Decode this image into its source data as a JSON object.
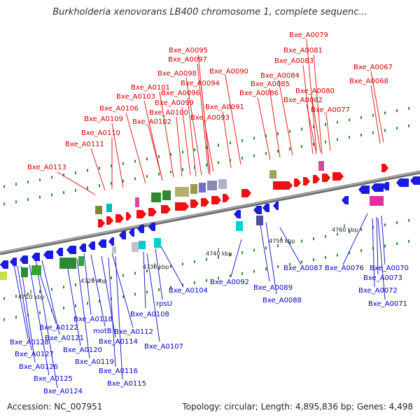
{
  "title": "Burkholderia xenovorans LB400 chromosome 1, complete sequenc...",
  "footer": {
    "accession": "Accession: NC_007951",
    "stats": "Topology: circular; Length: 4,895,836 bp; Genes: 4,498"
  },
  "colors": {
    "plus_label": "#cc0000",
    "minus_label": "#0000cc",
    "backbone": "#888888",
    "dot": "#208020"
  },
  "ticks": [
    "4710 kbp",
    "4720 kbp",
    "4730 kbp",
    "4740 kbp",
    "4750 kbp",
    "4760 kbp"
  ],
  "plus_genes": [
    "Bxe_A0079",
    "Bxe_A0081",
    "Bxe_A0083",
    "Bxe_A0067",
    "Bxe_A0095",
    "Bxe_A0097",
    "Bxe_A0084",
    "Bxe_A0068",
    "Bxe_A0098",
    "Bxe_A0090",
    "Bxe_A0085",
    "Bxe_A0094",
    "Bxe_A0086",
    "Bxe_A0080",
    "Bxe_A0101",
    "Bxe_A0096",
    "Bxe_A0103",
    "Bxe_A0082",
    "Bxe_A0099",
    "Bxe_A0106",
    "Bxe_A0100",
    "Bxe_A0091",
    "Bxe_A0077",
    "Bxe_A0109",
    "Bxe_A0102",
    "Bxe_A0093",
    "Bxe_A0110",
    "Bxe_A0111",
    "Bxe_A0113"
  ],
  "minus_genes": [
    "Bxe_A0087",
    "Bxe_A0076",
    "Bxe_A0070",
    "Bxe_A0073",
    "Bxe_A0072",
    "Bxe_A0071",
    "Bxe_A0092",
    "Bxe_A0089",
    "Bxe_A0088",
    "Bxe_A0104",
    "rpsU",
    "Bxe_A0108",
    "Bxe_A0107",
    "Bxe_A0118",
    "Bxe_A0122",
    "motB",
    "Bxe_A0112",
    "Bxe_A0121",
    "Bxe_A0114",
    "Bxe_A0128",
    "Bxe_A0120",
    "Bxe_A0127",
    "Bxe_A0119",
    "Bxe_A0116",
    "Bxe_A0126",
    "Bxe_A0125",
    "Bxe_A0115",
    "Bxe_A0124"
  ]
}
